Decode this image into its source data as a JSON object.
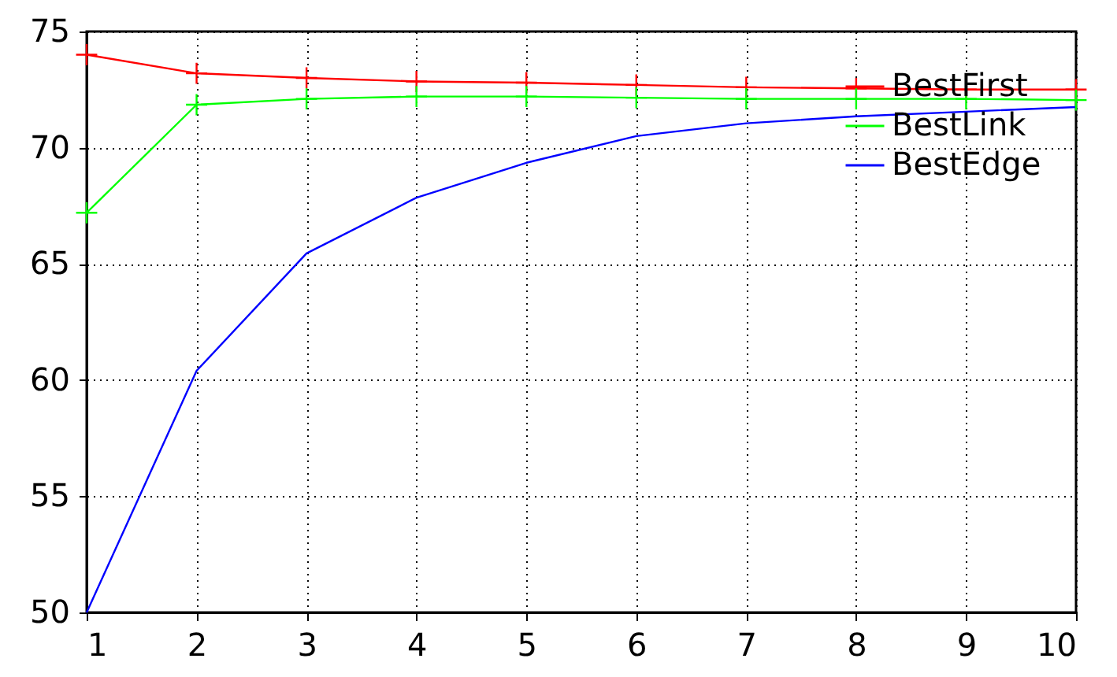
{
  "chart_data": {
    "type": "line",
    "x": [
      1,
      2,
      3,
      4,
      5,
      6,
      7,
      8,
      9,
      10
    ],
    "series": [
      {
        "name": "BestFirst",
        "color": "#ff0000",
        "marker": "cross",
        "values": [
          74.0,
          73.2,
          73.0,
          72.85,
          72.8,
          72.7,
          72.6,
          72.55,
          72.5,
          72.5
        ]
      },
      {
        "name": "BestLink",
        "color": "#00ff00",
        "marker": "cross",
        "values": [
          67.2,
          71.85,
          72.1,
          72.2,
          72.2,
          72.15,
          72.1,
          72.1,
          72.1,
          72.05
        ]
      },
      {
        "name": "BestEdge",
        "color": "#0000ff",
        "marker": "none",
        "values": [
          50.0,
          60.4,
          65.45,
          67.85,
          69.35,
          70.5,
          71.05,
          71.35,
          71.55,
          71.75
        ]
      }
    ],
    "xlim": [
      1,
      10
    ],
    "xticks": [
      1,
      2,
      3,
      4,
      5,
      6,
      7,
      8,
      9,
      10
    ],
    "ylim": [
      50,
      75
    ],
    "yticks": [
      50,
      55,
      60,
      65,
      70,
      75
    ],
    "grid": true,
    "legend": "top right"
  }
}
